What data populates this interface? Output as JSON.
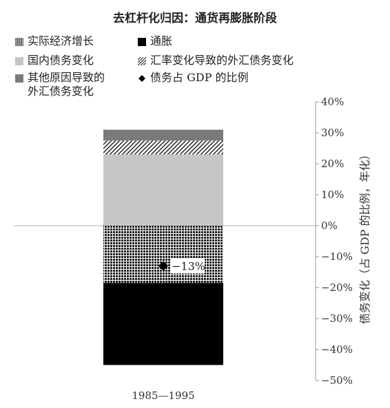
{
  "chart_data": {
    "type": "bar",
    "title": "去杠杆化归因：通货再膨胀阶段",
    "categories": [
      "1985—1995"
    ],
    "ylabel": "债务变化（占 GDP 的比例，年化）",
    "ylim": [
      -50,
      40
    ],
    "yticks": [
      40,
      30,
      20,
      10,
      0,
      -10,
      -20,
      -30,
      -40,
      -50
    ],
    "ytick_labels": [
      "40%",
      "30%",
      "20%",
      "10%",
      "0%",
      "−10%",
      "−20%",
      "−30%",
      "−40%",
      "−50%"
    ],
    "grid": false,
    "legend_position": "top",
    "series": [
      {
        "name": "实际经济增长",
        "values": [
          -18.5
        ],
        "pattern": "grid",
        "color": "#222222"
      },
      {
        "name": "通胀",
        "values": [
          -26.5
        ],
        "pattern": "solid",
        "color": "#000000"
      },
      {
        "name": "国内债务变化",
        "values": [
          23
        ],
        "pattern": "solid",
        "color": "#c6c6c6"
      },
      {
        "name": "汇率变化导致的外汇债务变化",
        "values": [
          4.5
        ],
        "pattern": "diagonal",
        "color": "#333333"
      },
      {
        "name": "其他原因导致的外汇债务变化",
        "values": [
          3.5
        ],
        "pattern": "solid",
        "color": "#7a7a7a"
      }
    ],
    "marker_series": {
      "name": "债务占 GDP 的比例",
      "values": [
        -13
      ],
      "label": "−13%"
    }
  },
  "legend": {
    "real_growth": "实际经济增长",
    "inflation": "通胀",
    "domestic_debt": "国内债务变化",
    "fx_debt_exchange": "汇率变化导致的外汇债务变化",
    "fx_debt_other_line1": "其他原因导致的",
    "fx_debt_other_line2": "外汇债务变化",
    "debt_ratio": "债务占 GDP 的比例"
  }
}
